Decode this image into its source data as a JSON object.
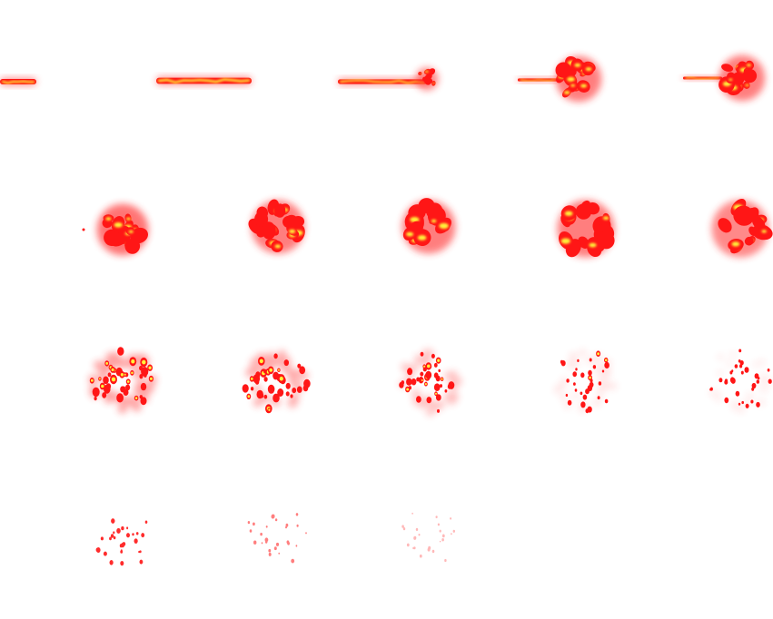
{
  "sprite_sheet": {
    "rows": 4,
    "columns": 5,
    "background": "#ffffff",
    "colors": {
      "core": "#fff23a",
      "mid": "#ff7a10",
      "flame": "#ff1616",
      "glow": "#ff2a2a"
    },
    "frames": [
      {
        "index": 1,
        "phase": "streak-start"
      },
      {
        "index": 2,
        "phase": "streak"
      },
      {
        "index": 3,
        "phase": "ignite"
      },
      {
        "index": 4,
        "phase": "burst"
      },
      {
        "index": 5,
        "phase": "burst"
      },
      {
        "index": 6,
        "phase": "fireball"
      },
      {
        "index": 7,
        "phase": "fireball"
      },
      {
        "index": 8,
        "phase": "fireball"
      },
      {
        "index": 9,
        "phase": "fireball"
      },
      {
        "index": 10,
        "phase": "fireball"
      },
      {
        "index": 11,
        "phase": "dissipate"
      },
      {
        "index": 12,
        "phase": "dissipate"
      },
      {
        "index": 13,
        "phase": "dissipate"
      },
      {
        "index": 14,
        "phase": "dissipate"
      },
      {
        "index": 15,
        "phase": "dissipate"
      },
      {
        "index": 16,
        "phase": "embers"
      },
      {
        "index": 17,
        "phase": "embers"
      },
      {
        "index": 18,
        "phase": "embers"
      },
      {
        "index": 19,
        "phase": "empty"
      },
      {
        "index": 20,
        "phase": "empty"
      }
    ]
  }
}
